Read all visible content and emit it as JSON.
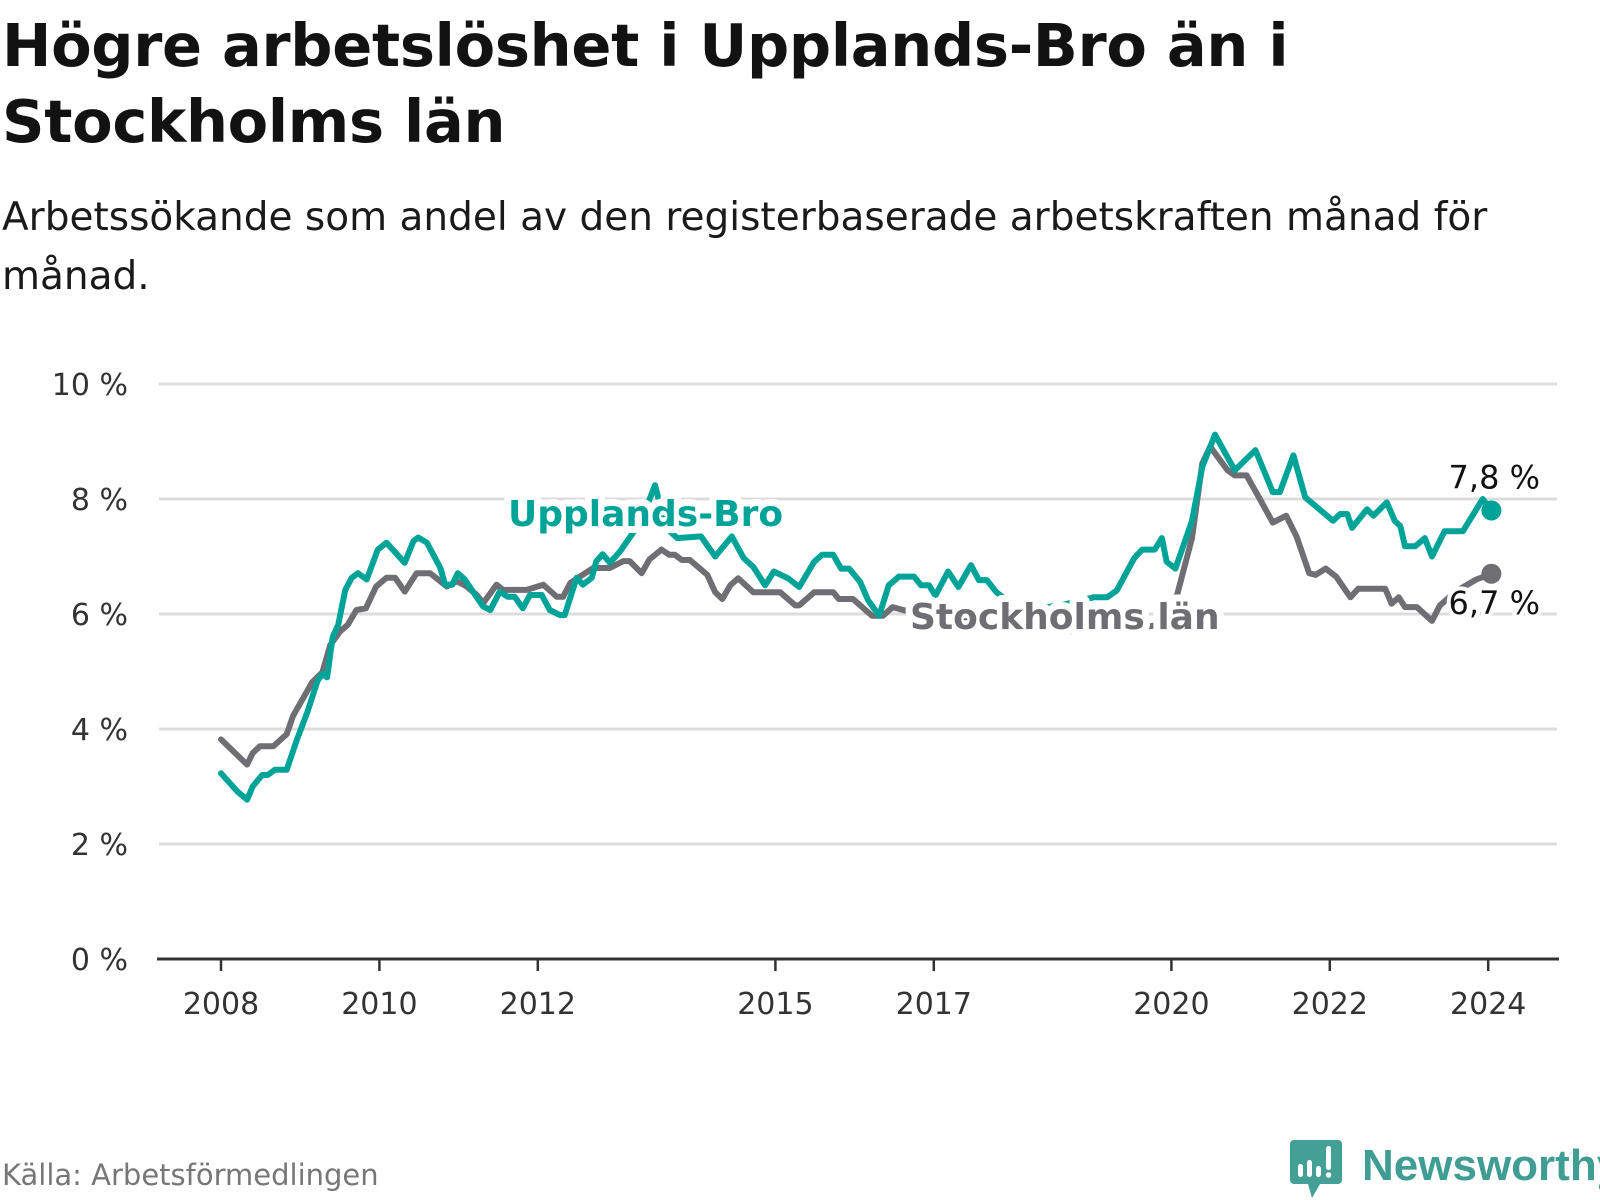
{
  "title": "Högre arbetslöshet i Upplands-Bro än i Stockholms län",
  "subtitle": "Arbetssökande som andel av den registerbaserade arbetskraften månad för månad.",
  "source": "Källa: Arbetsförmedlingen",
  "brand": "Newsworthy",
  "chart_data": {
    "type": "line",
    "title": "Högre arbetslöshet i Upplands-Bro än i Stockholms län",
    "xlabel": "",
    "ylabel": "",
    "ylim": [
      0,
      10
    ],
    "xlim": [
      2008,
      2024.1
    ],
    "grid": true,
    "y_ticks": [
      {
        "value": 0,
        "label": "0 %"
      },
      {
        "value": 2,
        "label": "2 %"
      },
      {
        "value": 4,
        "label": "4 %"
      },
      {
        "value": 6,
        "label": "6 %"
      },
      {
        "value": 8,
        "label": "8 %"
      },
      {
        "value": 10,
        "label": "10 %"
      }
    ],
    "x_ticks": [
      {
        "value": 2008,
        "label": "2008"
      },
      {
        "value": 2010,
        "label": "2010"
      },
      {
        "value": 2012,
        "label": "2012"
      },
      {
        "value": 2015,
        "label": "2015"
      },
      {
        "value": 2017,
        "label": "2017"
      },
      {
        "value": 2020,
        "label": "2020"
      },
      {
        "value": 2022,
        "label": "2022"
      },
      {
        "value": 2024,
        "label": "2024"
      }
    ],
    "series": [
      {
        "name": "Upplands-Bro",
        "color": "#00a398",
        "end_label": "7,8 %",
        "points": [
          [
            2008.0,
            3.23
          ],
          [
            2008.21,
            2.91
          ],
          [
            2008.33,
            2.77
          ],
          [
            2008.4,
            3.0
          ],
          [
            2008.52,
            3.2
          ],
          [
            2008.59,
            3.2
          ],
          [
            2008.68,
            3.29
          ],
          [
            2008.83,
            3.29
          ],
          [
            2008.96,
            3.82
          ],
          [
            2009.09,
            4.29
          ],
          [
            2009.22,
            4.84
          ],
          [
            2009.28,
            4.96
          ],
          [
            2009.34,
            4.9
          ],
          [
            2009.41,
            5.6
          ],
          [
            2009.48,
            5.81
          ],
          [
            2009.57,
            6.42
          ],
          [
            2009.65,
            6.63
          ],
          [
            2009.73,
            6.71
          ],
          [
            2009.84,
            6.6
          ],
          [
            2009.98,
            7.12
          ],
          [
            2010.09,
            7.24
          ],
          [
            2010.32,
            6.89
          ],
          [
            2010.43,
            7.27
          ],
          [
            2010.49,
            7.33
          ],
          [
            2010.6,
            7.24
          ],
          [
            2010.77,
            6.8
          ],
          [
            2010.83,
            6.51
          ],
          [
            2010.92,
            6.51
          ],
          [
            2010.99,
            6.71
          ],
          [
            2011.08,
            6.6
          ],
          [
            2011.21,
            6.33
          ],
          [
            2011.31,
            6.13
          ],
          [
            2011.4,
            6.07
          ],
          [
            2011.52,
            6.39
          ],
          [
            2011.62,
            6.3
          ],
          [
            2011.71,
            6.3
          ],
          [
            2011.81,
            6.1
          ],
          [
            2011.9,
            6.33
          ],
          [
            2012.05,
            6.33
          ],
          [
            2012.15,
            6.07
          ],
          [
            2012.28,
            5.98
          ],
          [
            2012.34,
            5.98
          ],
          [
            2012.49,
            6.63
          ],
          [
            2012.57,
            6.51
          ],
          [
            2012.68,
            6.63
          ],
          [
            2012.74,
            6.92
          ],
          [
            2012.82,
            7.04
          ],
          [
            2012.91,
            6.89
          ],
          [
            2013.04,
            7.09
          ],
          [
            2013.16,
            7.33
          ],
          [
            2013.3,
            7.6
          ],
          [
            2013.48,
            8.24
          ],
          [
            2013.62,
            7.5
          ],
          [
            2013.76,
            7.32
          ],
          [
            2014.06,
            7.35
          ],
          [
            2014.24,
            7.0
          ],
          [
            2014.45,
            7.35
          ],
          [
            2014.6,
            6.97
          ],
          [
            2014.72,
            6.82
          ],
          [
            2014.87,
            6.5
          ],
          [
            2014.98,
            6.74
          ],
          [
            2015.16,
            6.62
          ],
          [
            2015.3,
            6.47
          ],
          [
            2015.49,
            6.91
          ],
          [
            2015.59,
            7.03
          ],
          [
            2015.73,
            7.03
          ],
          [
            2015.83,
            6.79
          ],
          [
            2015.93,
            6.79
          ],
          [
            2016.07,
            6.56
          ],
          [
            2016.17,
            6.24
          ],
          [
            2016.31,
            5.97
          ],
          [
            2016.43,
            6.5
          ],
          [
            2016.56,
            6.65
          ],
          [
            2016.75,
            6.65
          ],
          [
            2016.84,
            6.5
          ],
          [
            2016.94,
            6.5
          ],
          [
            2017.02,
            6.32
          ],
          [
            2017.18,
            6.74
          ],
          [
            2017.31,
            6.47
          ],
          [
            2017.47,
            6.85
          ],
          [
            2017.57,
            6.59
          ],
          [
            2017.67,
            6.59
          ],
          [
            2017.79,
            6.38
          ],
          [
            2018.0,
            6.15
          ],
          [
            2018.3,
            6.1
          ],
          [
            2018.6,
            6.15
          ],
          [
            2019.02,
            6.29
          ],
          [
            2019.19,
            6.29
          ],
          [
            2019.31,
            6.41
          ],
          [
            2019.53,
            6.97
          ],
          [
            2019.63,
            7.12
          ],
          [
            2019.79,
            7.12
          ],
          [
            2019.88,
            7.32
          ],
          [
            2019.94,
            6.91
          ],
          [
            2020.05,
            6.79
          ],
          [
            2020.26,
            7.62
          ],
          [
            2020.39,
            8.56
          ],
          [
            2020.55,
            9.12
          ],
          [
            2020.8,
            8.5
          ],
          [
            2021.06,
            8.85
          ],
          [
            2021.28,
            8.12
          ],
          [
            2021.37,
            8.12
          ],
          [
            2021.54,
            8.76
          ],
          [
            2021.69,
            8.03
          ],
          [
            2022.04,
            7.62
          ],
          [
            2022.13,
            7.74
          ],
          [
            2022.22,
            7.74
          ],
          [
            2022.28,
            7.5
          ],
          [
            2022.47,
            7.82
          ],
          [
            2022.55,
            7.71
          ],
          [
            2022.72,
            7.94
          ],
          [
            2022.82,
            7.62
          ],
          [
            2022.89,
            7.53
          ],
          [
            2022.95,
            7.18
          ],
          [
            2023.08,
            7.18
          ],
          [
            2023.2,
            7.32
          ],
          [
            2023.29,
            7.0
          ],
          [
            2023.45,
            7.44
          ],
          [
            2023.68,
            7.44
          ],
          [
            2023.93,
            8.0
          ],
          [
            2024.04,
            7.8
          ]
        ]
      },
      {
        "name": "Stockholms län",
        "color": "#6f6e73",
        "end_label": "6,7 %",
        "points": [
          [
            2008.0,
            3.82
          ],
          [
            2008.33,
            3.38
          ],
          [
            2008.4,
            3.58
          ],
          [
            2008.49,
            3.7
          ],
          [
            2008.66,
            3.7
          ],
          [
            2008.83,
            3.91
          ],
          [
            2008.91,
            4.23
          ],
          [
            2009.15,
            4.81
          ],
          [
            2009.28,
            4.99
          ],
          [
            2009.38,
            5.46
          ],
          [
            2009.5,
            5.69
          ],
          [
            2009.6,
            5.81
          ],
          [
            2009.71,
            6.07
          ],
          [
            2009.83,
            6.1
          ],
          [
            2009.96,
            6.48
          ],
          [
            2010.09,
            6.63
          ],
          [
            2010.2,
            6.63
          ],
          [
            2010.32,
            6.39
          ],
          [
            2010.47,
            6.71
          ],
          [
            2010.64,
            6.71
          ],
          [
            2010.85,
            6.48
          ],
          [
            2010.98,
            6.57
          ],
          [
            2011.1,
            6.48
          ],
          [
            2011.23,
            6.33
          ],
          [
            2011.31,
            6.19
          ],
          [
            2011.48,
            6.51
          ],
          [
            2011.56,
            6.42
          ],
          [
            2011.73,
            6.42
          ],
          [
            2011.86,
            6.42
          ],
          [
            2012.07,
            6.51
          ],
          [
            2012.24,
            6.3
          ],
          [
            2012.32,
            6.3
          ],
          [
            2012.41,
            6.54
          ],
          [
            2012.53,
            6.65
          ],
          [
            2012.7,
            6.8
          ],
          [
            2012.91,
            6.8
          ],
          [
            2013.08,
            6.92
          ],
          [
            2013.16,
            6.92
          ],
          [
            2013.31,
            6.71
          ],
          [
            2013.41,
            6.95
          ],
          [
            2013.56,
            7.12
          ],
          [
            2013.66,
            7.03
          ],
          [
            2013.73,
            7.03
          ],
          [
            2013.82,
            6.94
          ],
          [
            2013.92,
            6.94
          ],
          [
            2014.14,
            6.68
          ],
          [
            2014.24,
            6.38
          ],
          [
            2014.33,
            6.26
          ],
          [
            2014.43,
            6.5
          ],
          [
            2014.53,
            6.62
          ],
          [
            2014.72,
            6.38
          ],
          [
            2015.06,
            6.38
          ],
          [
            2015.25,
            6.15
          ],
          [
            2015.3,
            6.15
          ],
          [
            2015.49,
            6.38
          ],
          [
            2015.73,
            6.38
          ],
          [
            2015.8,
            6.26
          ],
          [
            2015.98,
            6.26
          ],
          [
            2016.22,
            5.97
          ],
          [
            2016.36,
            5.97
          ],
          [
            2016.48,
            6.12
          ],
          [
            2016.8,
            6.0
          ],
          [
            2017.3,
            5.9
          ],
          [
            2017.8,
            5.8
          ],
          [
            2018.5,
            5.7
          ],
          [
            2019.2,
            5.7
          ],
          [
            2019.8,
            5.8
          ],
          [
            2020.07,
            6.32
          ],
          [
            2020.26,
            7.32
          ],
          [
            2020.39,
            8.62
          ],
          [
            2020.49,
            8.91
          ],
          [
            2020.71,
            8.5
          ],
          [
            2020.8,
            8.41
          ],
          [
            2020.95,
            8.41
          ],
          [
            2021.14,
            7.94
          ],
          [
            2021.28,
            7.59
          ],
          [
            2021.45,
            7.71
          ],
          [
            2021.58,
            7.35
          ],
          [
            2021.74,
            6.71
          ],
          [
            2021.82,
            6.68
          ],
          [
            2021.95,
            6.79
          ],
          [
            2022.08,
            6.65
          ],
          [
            2022.26,
            6.29
          ],
          [
            2022.36,
            6.44
          ],
          [
            2022.7,
            6.44
          ],
          [
            2022.78,
            6.18
          ],
          [
            2022.87,
            6.29
          ],
          [
            2022.95,
            6.12
          ],
          [
            2023.1,
            6.12
          ],
          [
            2023.29,
            5.88
          ],
          [
            2023.39,
            6.15
          ],
          [
            2023.6,
            6.4
          ],
          [
            2023.85,
            6.6
          ],
          [
            2024.04,
            6.7
          ]
        ]
      }
    ]
  }
}
